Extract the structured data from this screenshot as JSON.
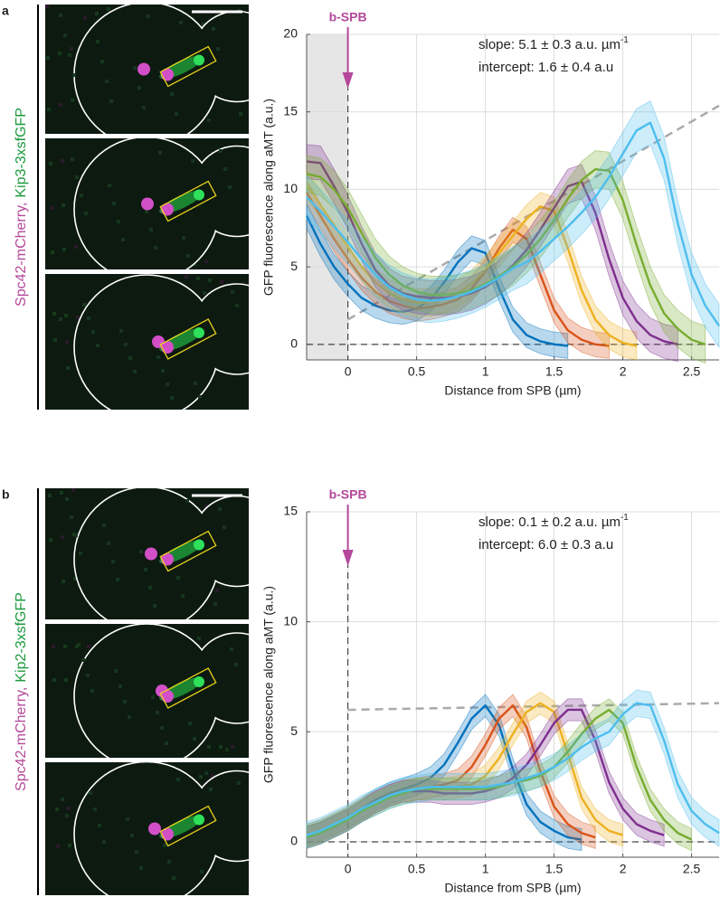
{
  "chart_data": [
    {
      "type": "line",
      "panel": "a",
      "image_label": {
        "mcherry": "Spc42-mCherry,",
        "gfp": "Kip3-3xsfGFP"
      },
      "marker_label": "b-SPB",
      "xlabel": "Distance from SPB (µm)",
      "ylabel": "GFP fluorescence along aMT (a.u.)",
      "annotations": [
        {
          "text": "slope: 5.1 ± 0.3 a.u. µm",
          "sup": "-1"
        },
        {
          "text": "intercept: 1.6 ± 0.4 a.u"
        }
      ],
      "xlim": [
        -0.3,
        2.7
      ],
      "xticks": [
        0,
        0.5,
        1,
        1.5,
        2,
        2.5
      ],
      "ylim": [
        -1,
        20
      ],
      "yticks": [
        0,
        5,
        10,
        15,
        20
      ],
      "grid": true,
      "shaded_xrange": [
        -0.3,
        0
      ],
      "reference_lines": {
        "x": 0,
        "y": 0
      },
      "fit": {
        "x": [
          0,
          2.7
        ],
        "values": [
          1.6,
          15.4
        ],
        "color": "#aaaaaa"
      },
      "x": [
        -0.3,
        -0.2,
        -0.1,
        0,
        0.1,
        0.2,
        0.3,
        0.4,
        0.5,
        0.6,
        0.7,
        0.8,
        0.9,
        1,
        1.1,
        1.2,
        1.3,
        1.4,
        1.5,
        1.6,
        1.7,
        1.8,
        1.9,
        2,
        2.1,
        2.2,
        2.3,
        2.4,
        2.5,
        2.6,
        2.7
      ],
      "series": [
        {
          "color": "#0072bd",
          "error": 0.8,
          "values": [
            8.3,
            6.5,
            5.0,
            3.9,
            3.0,
            2.5,
            2.2,
            2.1,
            2.3,
            2.9,
            4.0,
            5.3,
            6.2,
            5.9,
            3.6,
            1.6,
            0.6,
            0.2,
            0.0,
            -0.1,
            null,
            null,
            null,
            null,
            null,
            null,
            null,
            null,
            null,
            null,
            null
          ]
        },
        {
          "color": "#d95319",
          "error": 0.8,
          "values": [
            9.8,
            8.3,
            6.8,
            5.5,
            4.3,
            3.4,
            2.8,
            2.5,
            2.3,
            2.4,
            2.6,
            2.9,
            3.6,
            4.7,
            6.2,
            7.4,
            6.8,
            4.5,
            2.2,
            0.9,
            0.3,
            0.0,
            -0.1,
            null,
            null,
            null,
            null,
            null,
            null,
            null,
            null
          ]
        },
        {
          "color": "#edb120",
          "error": 0.9,
          "values": [
            10.3,
            9.0,
            7.7,
            6.3,
            5.0,
            4.0,
            3.3,
            2.9,
            2.7,
            2.7,
            2.9,
            3.3,
            3.9,
            4.8,
            5.9,
            7.0,
            8.1,
            8.9,
            8.6,
            6.2,
            3.5,
            1.6,
            0.6,
            0.1,
            -0.1,
            null,
            null,
            null,
            null,
            null,
            null
          ]
        },
        {
          "color": "#7e2f8e",
          "error": 1.1,
          "values": [
            11.8,
            11.7,
            10.2,
            8.5,
            6.5,
            4.8,
            3.8,
            3.3,
            3.1,
            3.0,
            3.0,
            3.1,
            3.3,
            3.7,
            4.3,
            5.1,
            6.1,
            7.4,
            8.8,
            10.2,
            10.5,
            8.5,
            5.5,
            3.0,
            1.5,
            0.6,
            0.2,
            0.0,
            null,
            null,
            null
          ]
        },
        {
          "color": "#77ac30",
          "error": 1.2,
          "values": [
            11.0,
            10.8,
            10.0,
            8.8,
            7.2,
            5.6,
            4.5,
            3.8,
            3.4,
            3.2,
            3.2,
            3.3,
            3.5,
            3.9,
            4.4,
            5.0,
            5.8,
            6.8,
            8.0,
            9.4,
            10.6,
            11.3,
            11.2,
            9.3,
            6.4,
            3.8,
            2.0,
            1.0,
            0.3,
            0.0,
            null
          ]
        },
        {
          "color": "#4dbeee",
          "error": 1.4,
          "values": [
            9.5,
            8.6,
            7.6,
            6.6,
            5.5,
            4.5,
            3.7,
            3.2,
            2.9,
            2.8,
            2.9,
            3.1,
            3.4,
            3.8,
            4.3,
            4.9,
            5.3,
            6.0,
            6.8,
            7.6,
            8.5,
            9.5,
            10.8,
            12.3,
            13.8,
            14.3,
            12.0,
            7.8,
            4.5,
            2.5,
            1.2
          ]
        }
      ]
    },
    {
      "type": "line",
      "panel": "b",
      "image_label": {
        "mcherry": "Spc42-mCherry,",
        "gfp": "Kip2-3xsfGFP"
      },
      "marker_label": "b-SPB",
      "xlabel": "Distance from SPB (µm)",
      "ylabel": "GFP fluorescence along aMT (a.u.)",
      "annotations": [
        {
          "text": "slope: 0.1 ± 0.2 a.u. µm",
          "sup": "-1"
        },
        {
          "text": "intercept: 6.0 ± 0.3 a.u"
        }
      ],
      "xlim": [
        -0.3,
        2.7
      ],
      "xticks": [
        0,
        0.5,
        1,
        1.5,
        2,
        2.5
      ],
      "ylim": [
        -0.7,
        15
      ],
      "yticks": [
        0,
        5,
        10,
        15
      ],
      "grid": true,
      "reference_lines": {
        "x": 0,
        "y": 0
      },
      "fit": {
        "x": [
          0,
          2.7
        ],
        "values": [
          6,
          6.3
        ],
        "color": "#aaaaaa"
      },
      "x": [
        -0.3,
        -0.2,
        -0.1,
        0,
        0.1,
        0.2,
        0.3,
        0.4,
        0.5,
        0.6,
        0.7,
        0.8,
        0.9,
        1,
        1.1,
        1.2,
        1.3,
        1.4,
        1.5,
        1.6,
        1.7,
        1.8,
        1.9,
        2,
        2.1,
        2.2,
        2.3,
        2.4,
        2.5,
        2.6,
        2.7
      ],
      "series": [
        {
          "color": "#0072bd",
          "error": 0.5,
          "values": [
            0.3,
            0.5,
            0.8,
            1.1,
            1.5,
            1.9,
            2.2,
            2.4,
            2.6,
            2.9,
            3.5,
            4.5,
            5.6,
            6.2,
            5.3,
            3.3,
            1.7,
            0.9,
            0.5,
            0.2,
            0.1,
            null,
            null,
            null,
            null,
            null,
            null,
            null,
            null,
            null,
            null
          ]
        },
        {
          "color": "#d95319",
          "error": 0.5,
          "values": [
            0.2,
            0.4,
            0.7,
            1.0,
            1.4,
            1.8,
            2.1,
            2.3,
            2.4,
            2.5,
            2.6,
            2.8,
            3.4,
            4.4,
            5.6,
            6.2,
            5.2,
            3.2,
            1.6,
            0.8,
            0.4,
            0.2,
            null,
            null,
            null,
            null,
            null,
            null,
            null,
            null,
            null
          ]
        },
        {
          "color": "#edb120",
          "error": 0.5,
          "values": [
            0.3,
            0.5,
            0.8,
            1.1,
            1.5,
            1.8,
            2.1,
            2.3,
            2.4,
            2.4,
            2.4,
            2.5,
            2.6,
            3.0,
            3.8,
            4.9,
            5.9,
            6.3,
            5.9,
            4.0,
            2.0,
            1.0,
            0.5,
            0.3,
            null,
            null,
            null,
            null,
            null,
            null,
            null
          ]
        },
        {
          "color": "#7e2f8e",
          "error": 0.5,
          "values": [
            0.2,
            0.4,
            0.7,
            1.0,
            1.4,
            1.8,
            2.1,
            2.3,
            2.3,
            2.3,
            2.2,
            2.2,
            2.2,
            2.3,
            2.5,
            2.9,
            3.5,
            4.4,
            5.4,
            6.0,
            6.0,
            4.6,
            2.7,
            1.5,
            0.8,
            0.5,
            0.3,
            null,
            null,
            null,
            null
          ]
        },
        {
          "color": "#77ac30",
          "error": 0.5,
          "values": [
            0.2,
            0.4,
            0.7,
            1.0,
            1.4,
            1.7,
            2.0,
            2.2,
            2.4,
            2.4,
            2.4,
            2.4,
            2.4,
            2.4,
            2.5,
            2.7,
            2.8,
            3.0,
            3.4,
            4.1,
            4.9,
            5.6,
            6.0,
            5.4,
            3.4,
            1.9,
            1.0,
            0.4,
            0.1,
            null,
            null
          ]
        },
        {
          "color": "#4dbeee",
          "error": 0.6,
          "values": [
            0.3,
            0.5,
            0.8,
            1.1,
            1.5,
            1.8,
            2.1,
            2.3,
            2.4,
            2.5,
            2.5,
            2.5,
            2.5,
            2.5,
            2.6,
            2.7,
            2.9,
            3.1,
            3.4,
            3.8,
            4.3,
            4.7,
            5.0,
            5.8,
            6.3,
            6.2,
            4.6,
            2.6,
            1.4,
            0.8,
            0.4
          ]
        }
      ]
    }
  ]
}
